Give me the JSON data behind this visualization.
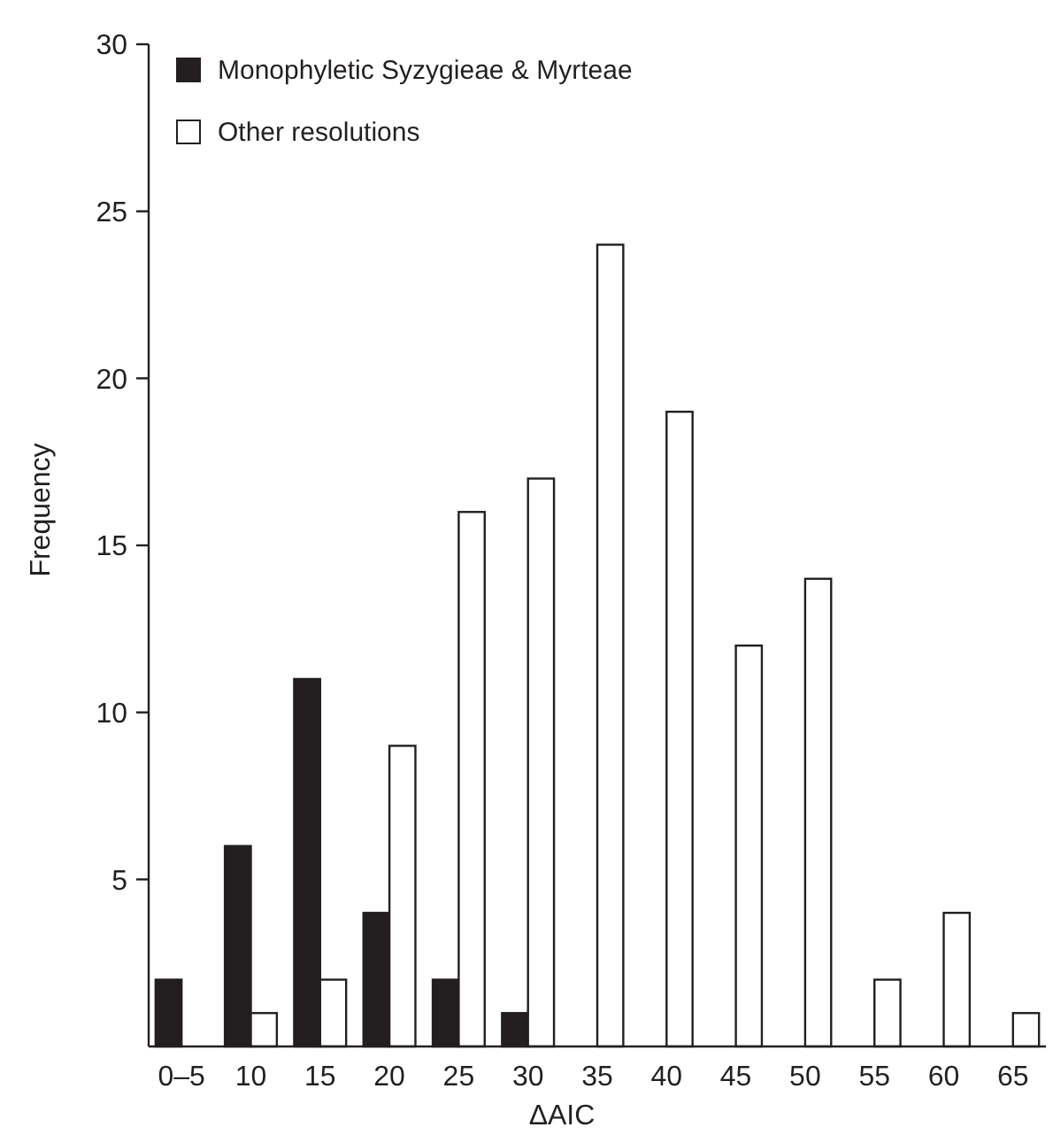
{
  "chart_data": {
    "type": "bar",
    "xlabel": "ΔAIC",
    "ylabel": "Frequency",
    "categories": [
      "0–5",
      "10",
      "15",
      "20",
      "25",
      "30",
      "35",
      "40",
      "45",
      "50",
      "55",
      "60",
      "65"
    ],
    "series": [
      {
        "name": "Monophyletic Syzygieae & Myrteae",
        "color": "#231f20",
        "values": [
          2,
          6,
          11,
          4,
          2,
          1,
          0,
          0,
          0,
          0,
          0,
          0,
          0
        ]
      },
      {
        "name": "Other resolutions",
        "color": "#ffffff",
        "values": [
          0,
          1,
          2,
          9,
          16,
          17,
          24,
          19,
          12,
          14,
          2,
          4,
          1
        ]
      }
    ],
    "ylim": [
      0,
      30
    ],
    "yticks": [
      5,
      10,
      15,
      20,
      25,
      30
    ],
    "grid": false,
    "legend": "top left"
  }
}
